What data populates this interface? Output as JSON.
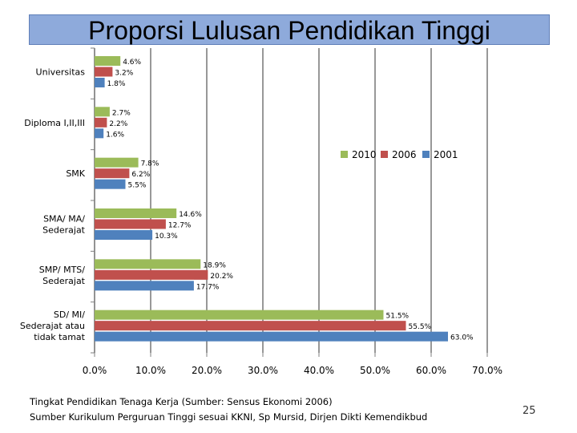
{
  "title": "Proporsi Lulusan Pendidikan Tinggi",
  "chart_data": {
    "type": "bar",
    "orientation": "horizontal",
    "categories": [
      [
        "Universitas"
      ],
      [
        "Diploma I,II,III"
      ],
      [
        "SMK"
      ],
      [
        "SMA/ MA/",
        "Sederajat"
      ],
      [
        "SMP/ MTS/",
        "Sederajat"
      ],
      [
        "SD/ MI/",
        "Sederajat atau",
        "tidak tamat"
      ]
    ],
    "series": [
      {
        "name": "2010",
        "color": "#9bbb59",
        "values": [
          4.6,
          2.7,
          7.8,
          14.6,
          18.9,
          51.5
        ],
        "labels": [
          "4.6%",
          "2.7%",
          "7.8%",
          "14.6%",
          "18.9%",
          "51.5%"
        ]
      },
      {
        "name": "2006",
        "color": "#c0504d",
        "values": [
          3.2,
          2.2,
          6.2,
          12.7,
          20.2,
          55.5
        ],
        "labels": [
          "3.2%",
          "2.2%",
          "6.2%",
          "12.7%",
          "20.2%",
          "55.5%"
        ]
      },
      {
        "name": "2001",
        "color": "#4f81bd",
        "values": [
          1.8,
          1.6,
          5.5,
          10.3,
          17.7,
          63.0
        ],
        "labels": [
          "1.8%",
          "1.6%",
          "5.5%",
          "10.3%",
          "17.7%",
          "63.0%"
        ]
      }
    ],
    "xlim": [
      0,
      70
    ],
    "xticks": [
      "0.0%",
      "10.0%",
      "20.0%",
      "30.0%",
      "40.0%",
      "50.0%",
      "60.0%",
      "70.0%"
    ],
    "grid": "vertical",
    "legend": "top-right"
  },
  "footer": {
    "line1": "Tingkat Pendidikan Tenaga Kerja (Sumber: Sensus Ekonomi 2006)",
    "line2": "Sumber Kurikulum Perguruan Tinggi sesuai KKNI, Sp Mursid, Dirjen Dikti Kemendikbud"
  },
  "page_number": "25"
}
